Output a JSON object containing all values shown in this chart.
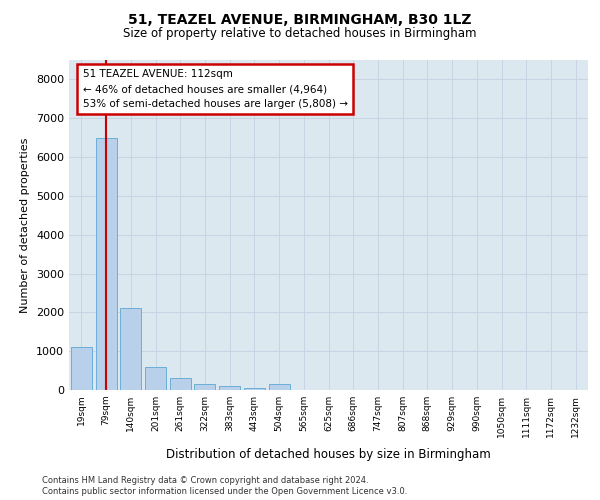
{
  "title1": "51, TEAZEL AVENUE, BIRMINGHAM, B30 1LZ",
  "title2": "Size of property relative to detached houses in Birmingham",
  "xlabel": "Distribution of detached houses by size in Birmingham",
  "ylabel": "Number of detached properties",
  "categories": [
    "19sqm",
    "79sqm",
    "140sqm",
    "201sqm",
    "261sqm",
    "322sqm",
    "383sqm",
    "443sqm",
    "504sqm",
    "565sqm",
    "625sqm",
    "686sqm",
    "747sqm",
    "807sqm",
    "868sqm",
    "929sqm",
    "990sqm",
    "1050sqm",
    "1111sqm",
    "1172sqm",
    "1232sqm"
  ],
  "values": [
    1100,
    6500,
    2100,
    600,
    300,
    150,
    100,
    50,
    150,
    0,
    0,
    0,
    0,
    0,
    0,
    0,
    0,
    0,
    0,
    0,
    0
  ],
  "bar_color": "#b8d0ea",
  "bar_edge_color": "#6baed6",
  "red_line_color": "#cc0000",
  "annotation_text": "51 TEAZEL AVENUE: 112sqm\n← 46% of detached houses are smaller (4,964)\n53% of semi-detached houses are larger (5,808) →",
  "annotation_box_color": "#ffffff",
  "annotation_box_edge": "#cc0000",
  "grid_color": "#c8d4e4",
  "bg_color": "#dce8f0",
  "ylim": [
    0,
    8500
  ],
  "yticks": [
    0,
    1000,
    2000,
    3000,
    4000,
    5000,
    6000,
    7000,
    8000
  ],
  "footer1": "Contains HM Land Registry data © Crown copyright and database right 2024.",
  "footer2": "Contains public sector information licensed under the Open Government Licence v3.0."
}
